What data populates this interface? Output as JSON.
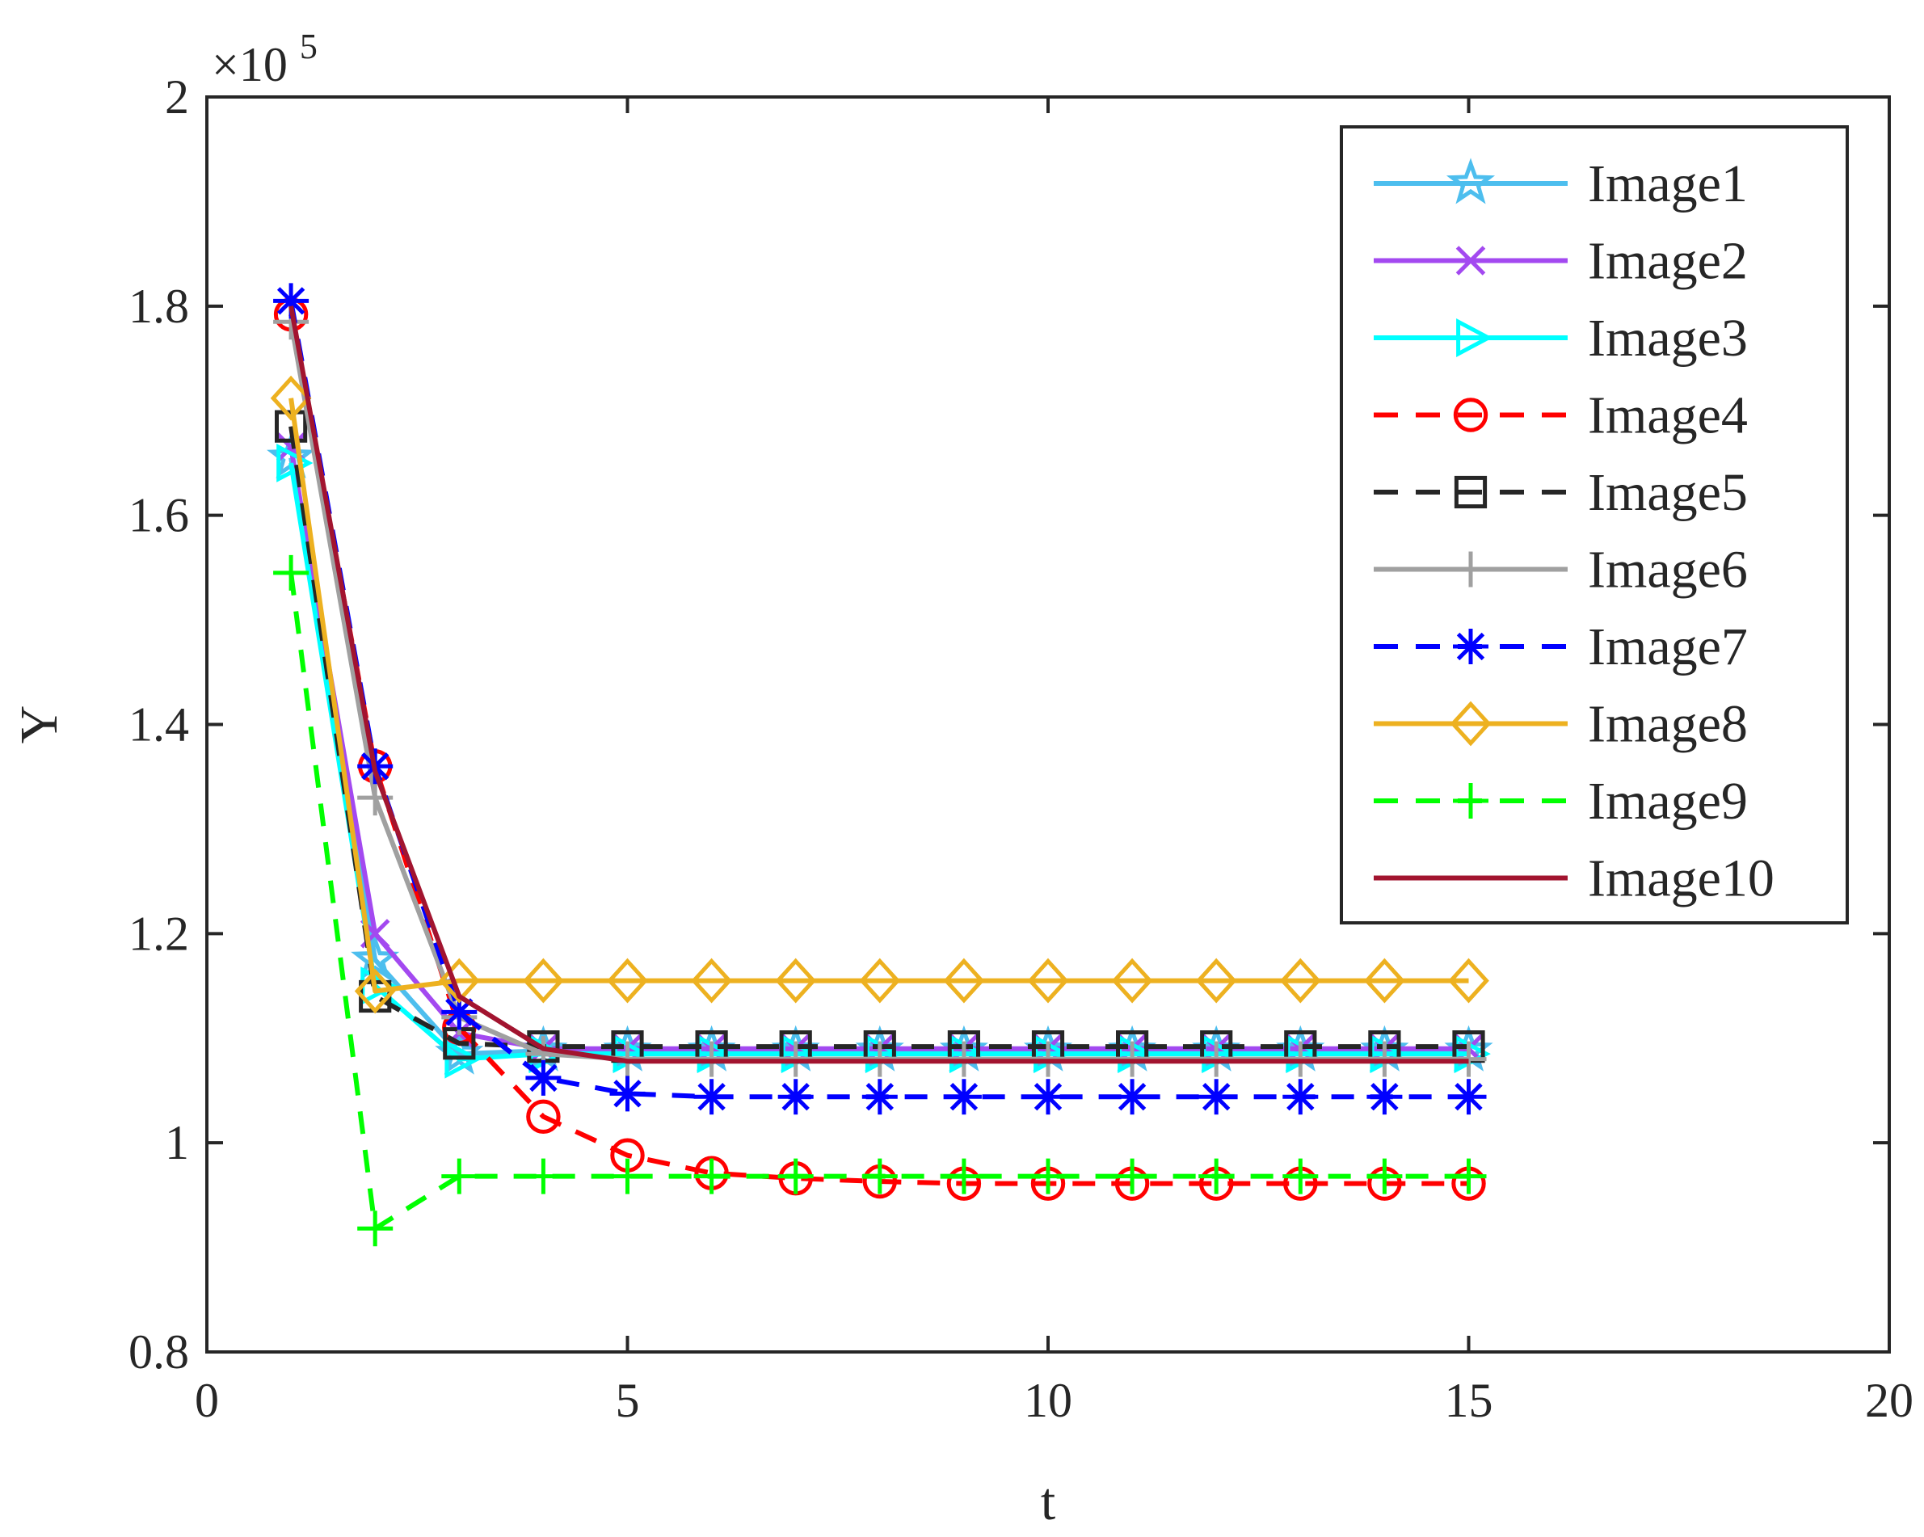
{
  "chart_data": {
    "type": "line",
    "title": "",
    "xlabel": "t",
    "ylabel": "Y",
    "xlim": [
      0,
      20
    ],
    "ylim": [
      0.8,
      2.0
    ],
    "y_multiplier_label": "×10",
    "y_multiplier_exponent": "5",
    "x_ticks": [
      "0",
      "5",
      "10",
      "15",
      "20"
    ],
    "y_ticks": [
      "0.8",
      "1",
      "1.2",
      "1.4",
      "1.6",
      "1.8",
      "2"
    ],
    "legend_position": "top-right",
    "grid": false,
    "x": [
      1,
      2,
      3,
      4,
      5,
      6,
      7,
      8,
      9,
      10,
      11,
      12,
      13,
      14,
      15
    ],
    "series": [
      {
        "name": "Image1",
        "color": "#4DBEEE",
        "dash": "solid",
        "marker": "star",
        "values": [
          1.655,
          1.175,
          1.085,
          1.088,
          1.088,
          1.088,
          1.088,
          1.088,
          1.088,
          1.088,
          1.088,
          1.088,
          1.088,
          1.088,
          1.088
        ]
      },
      {
        "name": "Image2",
        "color": "#A349F0",
        "dash": "solid",
        "marker": "x",
        "values": [
          1.665,
          1.2,
          1.105,
          1.09,
          1.09,
          1.09,
          1.09,
          1.09,
          1.09,
          1.09,
          1.09,
          1.09,
          1.09,
          1.09,
          1.09
        ]
      },
      {
        "name": "Image3",
        "color": "#00FFFF",
        "dash": "solid",
        "marker": "triangle-right",
        "values": [
          1.65,
          1.15,
          1.08,
          1.085,
          1.085,
          1.085,
          1.085,
          1.085,
          1.085,
          1.085,
          1.085,
          1.085,
          1.085,
          1.085,
          1.085
        ]
      },
      {
        "name": "Image4",
        "color": "#FF0000",
        "dash": "dashed",
        "marker": "circle",
        "values": [
          1.792,
          1.36,
          1.11,
          1.025,
          0.988,
          0.971,
          0.966,
          0.963,
          0.961,
          0.961,
          0.961,
          0.961,
          0.961,
          0.961,
          0.961
        ]
      },
      {
        "name": "Image5",
        "color": "#262626",
        "dash": "dashed",
        "marker": "square",
        "values": [
          1.685,
          1.14,
          1.095,
          1.092,
          1.092,
          1.092,
          1.092,
          1.092,
          1.092,
          1.092,
          1.092,
          1.092,
          1.092,
          1.092,
          1.092
        ]
      },
      {
        "name": "Image6",
        "color": "#A0A0A0",
        "dash": "solid",
        "marker": "plus",
        "values": [
          1.785,
          1.33,
          1.12,
          1.085,
          1.08,
          1.08,
          1.08,
          1.08,
          1.08,
          1.08,
          1.08,
          1.08,
          1.08,
          1.08,
          1.08
        ]
      },
      {
        "name": "Image7",
        "color": "#0000FF",
        "dash": "dashed",
        "marker": "asterisk",
        "values": [
          1.805,
          1.36,
          1.125,
          1.062,
          1.047,
          1.044,
          1.044,
          1.044,
          1.044,
          1.044,
          1.044,
          1.044,
          1.044,
          1.044,
          1.044
        ]
      },
      {
        "name": "Image8",
        "color": "#EDB120",
        "dash": "solid",
        "marker": "diamond",
        "values": [
          1.712,
          1.145,
          1.155,
          1.155,
          1.155,
          1.155,
          1.155,
          1.155,
          1.155,
          1.155,
          1.155,
          1.155,
          1.155,
          1.155,
          1.155
        ]
      },
      {
        "name": "Image9",
        "color": "#00FF00",
        "dash": "dashed",
        "marker": "plus",
        "values": [
          1.545,
          0.918,
          0.968,
          0.968,
          0.968,
          0.968,
          0.968,
          0.968,
          0.968,
          0.968,
          0.968,
          0.968,
          0.968,
          0.968,
          0.968
        ]
      },
      {
        "name": "Image10",
        "color": "#A2142F",
        "dash": "solid",
        "marker": "none",
        "values": [
          1.8,
          1.355,
          1.14,
          1.09,
          1.078,
          1.078,
          1.078,
          1.078,
          1.078,
          1.078,
          1.078,
          1.078,
          1.078,
          1.078,
          1.078
        ]
      }
    ]
  }
}
